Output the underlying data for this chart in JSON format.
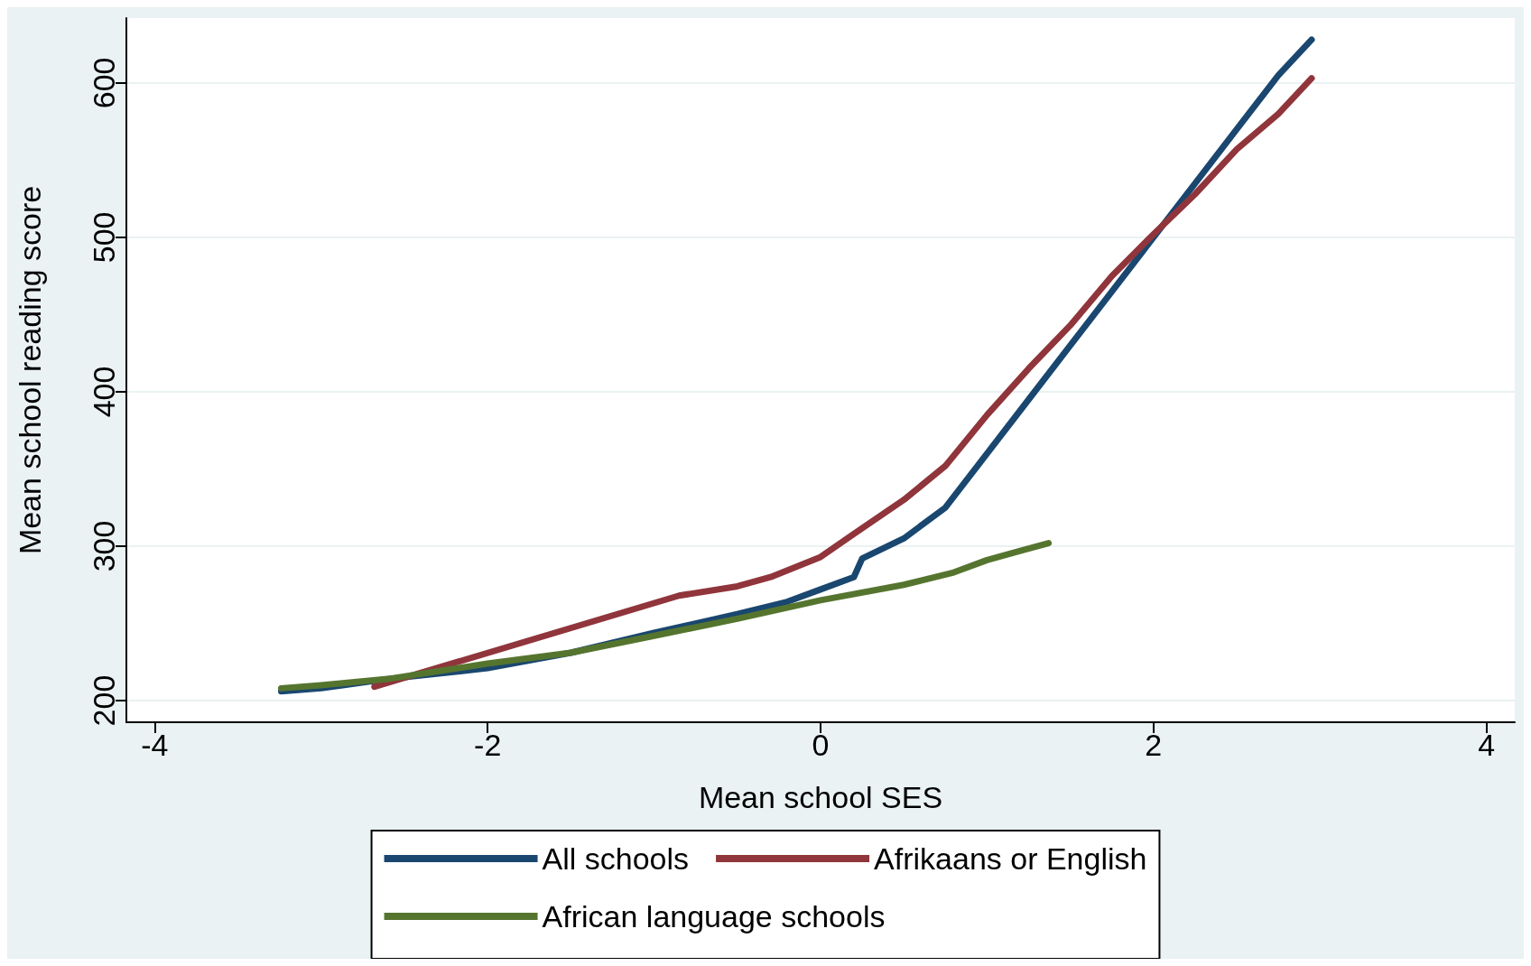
{
  "chart_data": {
    "type": "line",
    "xlabel": "Mean school SES",
    "ylabel": "Mean school reading score",
    "xlim": [
      -4.17,
      4.17
    ],
    "ylim": [
      186,
      642
    ],
    "xticks": [
      -4,
      -2,
      0,
      2,
      4
    ],
    "yticks": [
      200,
      300,
      400,
      500,
      600
    ],
    "grid": "y",
    "legend": "bottom",
    "marker": "none",
    "line_style": "solid",
    "series": [
      {
        "name": "All schools",
        "color": "#1a476f",
        "x": [
          -3.24,
          -3.0,
          -2.6,
          -2.0,
          -1.5,
          -1.0,
          -0.5,
          -0.2,
          0,
          0.2,
          0.25,
          0.5,
          0.75,
          1.0,
          1.25,
          1.5,
          1.75,
          2.0,
          2.25,
          2.5,
          2.75,
          2.95
        ],
        "values": [
          206,
          208,
          214,
          221,
          231,
          244,
          256,
          264,
          272,
          280,
          292,
          305,
          325,
          360,
          395,
          430,
          465,
          500,
          535,
          570,
          605,
          628
        ]
      },
      {
        "name": "Afrikaans or English",
        "color": "#90353b",
        "x": [
          -2.68,
          -0.85,
          -0.5,
          -0.3,
          0,
          0.2,
          0.5,
          0.75,
          1.0,
          1.25,
          1.5,
          1.75,
          2.0,
          2.25,
          2.5,
          2.75,
          2.95
        ],
        "values": [
          209,
          268,
          274,
          280,
          293,
          308,
          330,
          352,
          385,
          415,
          443,
          475,
          502,
          528,
          557,
          580,
          603
        ]
      },
      {
        "name": "African language schools",
        "color": "#55752f",
        "x": [
          -3.24,
          -3.0,
          -2.6,
          -2.0,
          -1.5,
          -1.0,
          -0.5,
          0,
          0.5,
          0.8,
          1.0,
          1.2,
          1.37
        ],
        "values": [
          208,
          210,
          214,
          224,
          231,
          242,
          253,
          265,
          275,
          283,
          291,
          297,
          302
        ]
      }
    ]
  }
}
